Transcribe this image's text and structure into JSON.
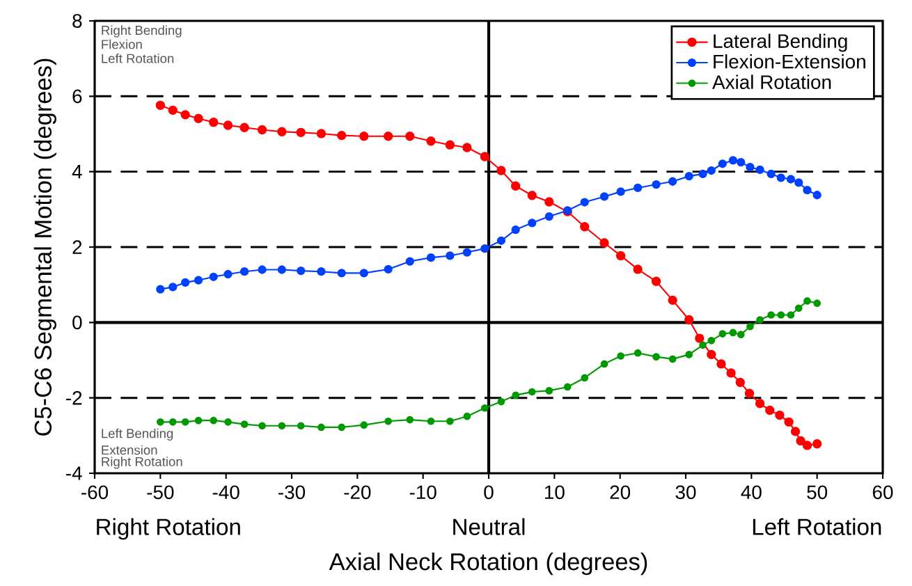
{
  "chart_data": {
    "type": "line",
    "xlabel": "Axial Neck Rotation (degrees)",
    "ylabel": "C5-C6 Segmental Motion (degrees)",
    "x": [
      -50,
      -48.1,
      -46.2,
      -44.2,
      -41.9,
      -39.7,
      -37.2,
      -34.5,
      -31.5,
      -28.6,
      -25.5,
      -22.4,
      -19,
      -15.3,
      -12,
      -8.8,
      -5.9,
      -3.3,
      -0.6,
      1.9,
      4.1,
      6.6,
      9.2,
      12,
      14.6,
      17.6,
      20.1,
      22.7,
      25.5,
      28,
      30.5,
      32.6,
      33.9,
      35.6,
      37.2,
      38.4,
      39.8,
      41.3,
      43,
      44.5,
      46,
      47.2,
      48.5,
      50
    ],
    "series": [
      {
        "name": "Lateral Bending",
        "color": "#ff0000",
        "x": [
          -50,
          -48.1,
          -46.2,
          -44.2,
          -41.9,
          -39.7,
          -37.2,
          -34.5,
          -31.5,
          -28.6,
          -25.5,
          -22.4,
          -19,
          -15.3,
          -12,
          -8.8,
          -5.9,
          -3.3,
          -0.6,
          1.9,
          4.1,
          6.6,
          9.2,
          12,
          14.6,
          17.6,
          20.1,
          22.7,
          25.5,
          28,
          30.5,
          32.1,
          33.9,
          35.4,
          36.9,
          38.3,
          39.7,
          41.3,
          42.8,
          44.3,
          45.7,
          46.7,
          47.5,
          48.5,
          50
        ],
        "values": [
          5.76,
          5.63,
          5.51,
          5.41,
          5.31,
          5.23,
          5.17,
          5.11,
          5.06,
          5.04,
          5.01,
          4.96,
          4.94,
          4.94,
          4.94,
          4.81,
          4.71,
          4.64,
          4.4,
          4.03,
          3.62,
          3.37,
          3.2,
          2.94,
          2.54,
          2.11,
          1.77,
          1.41,
          1.09,
          0.59,
          0.07,
          -0.42,
          -0.85,
          -1.1,
          -1.34,
          -1.59,
          -1.88,
          -2.15,
          -2.33,
          -2.46,
          -2.64,
          -2.89,
          -3.14,
          -3.26,
          -3.22
        ]
      },
      {
        "name": "Flexion-Extension",
        "color": "#0040ff",
        "values": [
          0.88,
          0.94,
          1.06,
          1.12,
          1.21,
          1.28,
          1.35,
          1.4,
          1.4,
          1.37,
          1.35,
          1.31,
          1.31,
          1.41,
          1.62,
          1.72,
          1.77,
          1.86,
          1.96,
          2.17,
          2.46,
          2.64,
          2.81,
          2.97,
          3.19,
          3.34,
          3.47,
          3.57,
          3.66,
          3.74,
          3.88,
          3.94,
          4.03,
          4.21,
          4.3,
          4.25,
          4.12,
          4.05,
          3.94,
          3.84,
          3.8,
          3.71,
          3.51,
          3.38
        ]
      },
      {
        "name": "Axial Rotation",
        "color": "#009900",
        "values": [
          -2.64,
          -2.64,
          -2.64,
          -2.6,
          -2.6,
          -2.64,
          -2.7,
          -2.74,
          -2.74,
          -2.74,
          -2.78,
          -2.78,
          -2.72,
          -2.62,
          -2.58,
          -2.62,
          -2.62,
          -2.49,
          -2.27,
          -2.1,
          -1.93,
          -1.84,
          -1.81,
          -1.71,
          -1.47,
          -1.1,
          -0.89,
          -0.81,
          -0.91,
          -0.97,
          -0.85,
          -0.6,
          -0.48,
          -0.3,
          -0.27,
          -0.32,
          -0.11,
          0.07,
          0.2,
          0.2,
          0.2,
          0.38,
          0.57,
          0.51
        ]
      }
    ],
    "xlim": [
      -60,
      60
    ],
    "ylim": [
      -4,
      8
    ],
    "xticks": [
      -60,
      -50,
      -40,
      -30,
      -20,
      -10,
      0,
      10,
      20,
      30,
      40,
      50,
      60
    ],
    "yticks": [
      -4,
      -2,
      0,
      2,
      4,
      6,
      8
    ],
    "ref_lines": [
      {
        "axis": "y",
        "value": 6,
        "color": "#000000",
        "line_style": "dashed"
      },
      {
        "axis": "y",
        "value": 4,
        "color": "#000000",
        "line_style": "dashed"
      },
      {
        "axis": "y",
        "value": 2,
        "color": "#000000",
        "line_style": "dashed"
      },
      {
        "axis": "y",
        "value": -2,
        "color": "#000000",
        "line_style": "dashed"
      },
      {
        "axis": "y",
        "value": 0,
        "color": "#000000",
        "line_style": "solid"
      },
      {
        "axis": "x",
        "value": 0,
        "color": "#000000",
        "line_style": "solid"
      }
    ],
    "annotations": [
      "Right Bending",
      "Flexion",
      "Left Rotation",
      "Left Bending",
      "Extension",
      "Right Rotation",
      "Right Rotation",
      "Neutral",
      "Left Rotation"
    ],
    "legend": "top right",
    "marker": "circle",
    "line_style": "solid",
    "grid": false
  }
}
